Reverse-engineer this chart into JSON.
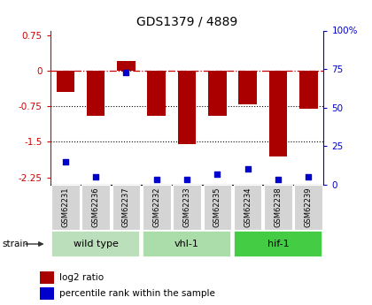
{
  "title": "GDS1379 / 4889",
  "samples": [
    "GSM62231",
    "GSM62236",
    "GSM62237",
    "GSM62232",
    "GSM62233",
    "GSM62235",
    "GSM62234",
    "GSM62238",
    "GSM62239"
  ],
  "log2_ratios": [
    -0.45,
    -0.95,
    0.2,
    -0.95,
    -1.55,
    -0.95,
    -0.7,
    -1.8,
    -0.8
  ],
  "percentile_ranks": [
    15,
    5,
    73,
    3,
    3,
    7,
    10,
    3,
    5
  ],
  "groups": [
    {
      "label": "wild type",
      "start": 0,
      "end": 2,
      "color": "#b8ddb8"
    },
    {
      "label": "vhl-1",
      "start": 3,
      "end": 5,
      "color": "#99cc99"
    },
    {
      "label": "hif-1",
      "start": 6,
      "end": 8,
      "color": "#44bb44"
    }
  ],
  "ylim_left": [
    -2.4,
    0.85
  ],
  "ylim_right": [
    0,
    100
  ],
  "yticks_left": [
    0.75,
    0.0,
    -0.75,
    -1.5,
    -2.25
  ],
  "yticks_right": [
    100,
    75,
    50,
    25,
    0
  ],
  "bar_color": "#aa0000",
  "dot_color": "#0000cc",
  "zero_line_color": "#cc0000",
  "left_axis_color": "#cc0000",
  "right_axis_color": "#0000cc",
  "legend_bar": "log2 ratio",
  "legend_dot": "percentile rank within the sample",
  "strain_label": "strain"
}
